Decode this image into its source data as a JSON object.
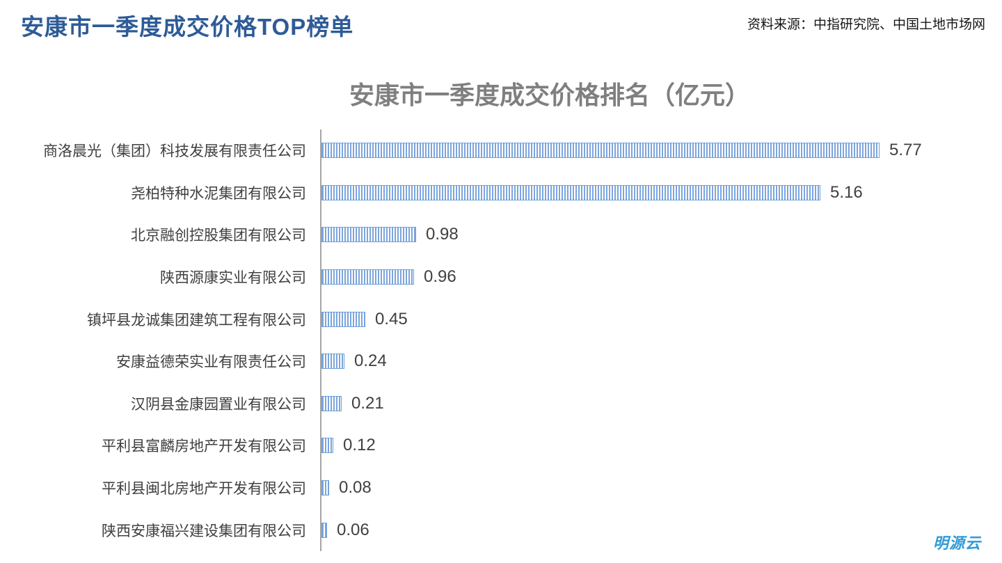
{
  "page": {
    "title": "安康市一季度成交价格TOP榜单",
    "source": "资料来源：中指研究院、中国土地市场网",
    "logo": "明源云"
  },
  "chart_data": {
    "type": "bar",
    "orientation": "horizontal",
    "title": "安康市一季度成交价格排名（亿元）",
    "unit": "亿元",
    "categories": [
      "商洛晨光（集团）科技发展有限责任公司",
      "尧柏特种水泥集团有限公司",
      "北京融创控股集团有限公司",
      "陕西源康实业有限公司",
      "镇坪县龙诚集团建筑工程有限公司",
      "安康益德荣实业有限责任公司",
      "汉阴县金康园置业有限公司",
      "平利县富麟房地产开发有限公司",
      "平利县闽北房地产开发有限公司",
      "陕西安康福兴建设集团有限公司"
    ],
    "values": [
      5.77,
      5.16,
      0.98,
      0.96,
      0.45,
      0.24,
      0.21,
      0.12,
      0.08,
      0.06
    ],
    "value_labels": [
      "5.77",
      "5.16",
      "0.98",
      "0.96",
      "0.45",
      "0.24",
      "0.21",
      "0.12",
      "0.08",
      "0.06"
    ],
    "xlim": [
      0,
      6
    ],
    "grid": false,
    "legend": false,
    "bar_pattern": "vertical-stripes",
    "colors": {
      "bar_stripe": "#7CA5DB",
      "bar_border": "#6FA0D8",
      "axis_line": "#A6A6A6",
      "value_label": "#404040",
      "category_label": "#3F3F3F",
      "chart_title": "#7F7F7F",
      "page_title": "#2E5B97",
      "logo_blue": "#2E9BD6"
    }
  }
}
